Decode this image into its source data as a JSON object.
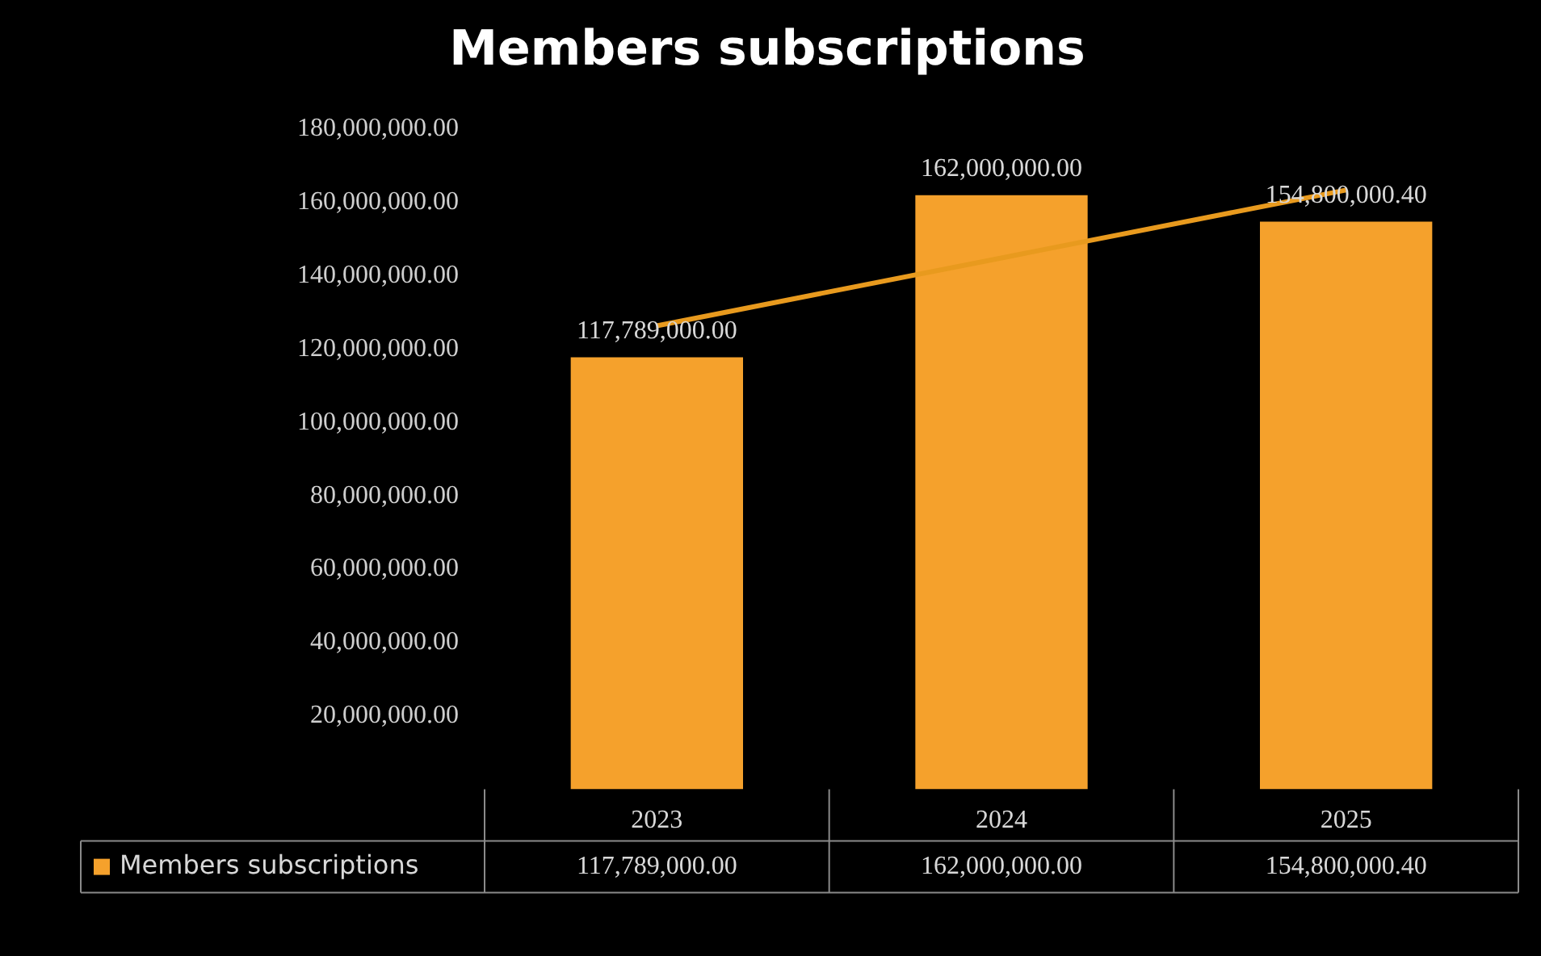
{
  "chart_data": {
    "type": "bar",
    "title": "Members subscriptions",
    "categories": [
      "2023",
      "2024",
      "2025"
    ],
    "series": [
      {
        "name": "Members subscriptions",
        "color": "#f5a12c",
        "values": [
          117789000,
          162000000,
          154800000.4
        ],
        "value_labels": [
          "117,789,000.00",
          "162,000,000.00",
          "154,800,000.40"
        ]
      },
      {
        "type": "line",
        "values": [
          126400000,
          144900000,
          163400000
        ],
        "color": "#e89a1e"
      }
    ],
    "ylim": [
      0,
      180000000
    ],
    "yticks": [
      {
        "value": 20000000,
        "label": "20,000,000.00"
      },
      {
        "value": 40000000,
        "label": "40,000,000.00"
      },
      {
        "value": 60000000,
        "label": "60,000,000.00"
      },
      {
        "value": 80000000,
        "label": "80,000,000.00"
      },
      {
        "value": 100000000,
        "label": "100,000,000.00"
      },
      {
        "value": 120000000,
        "label": "120,000,000.00"
      },
      {
        "value": 140000000,
        "label": "140,000,000.00"
      },
      {
        "value": 160000000,
        "label": "160,000,000.00"
      },
      {
        "value": 180000000,
        "label": "180,000,000.00"
      }
    ],
    "legend": "bottom left"
  }
}
